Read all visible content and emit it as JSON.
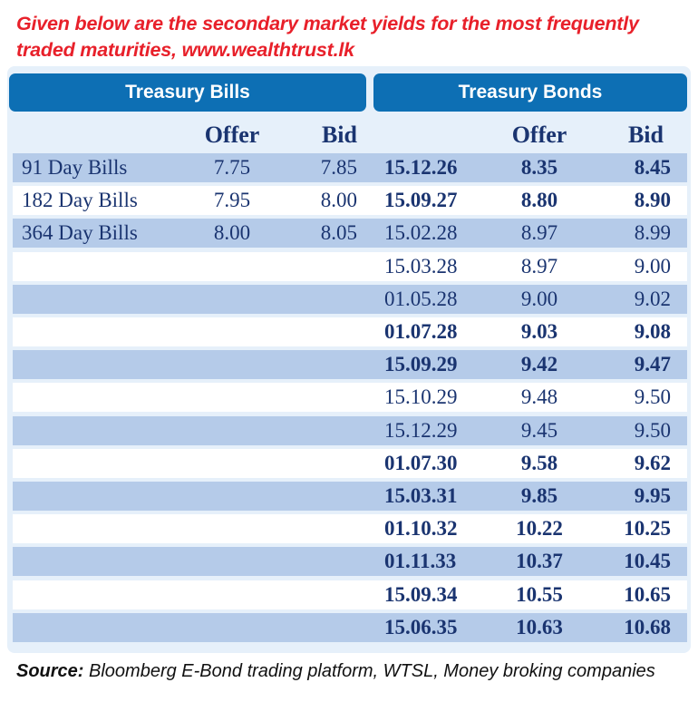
{
  "caption": "Given below are the secondary market yields for the most frequently traded maturities, www.wealthtrust.lk",
  "bills_header": "Treasury Bills",
  "bonds_header": "Treasury Bonds",
  "columns": {
    "offer": "Offer",
    "bid": "Bid"
  },
  "bills": [
    {
      "name": "91 Day Bills",
      "offer": "7.75",
      "bid": "7.85"
    },
    {
      "name": "182 Day Bills",
      "offer": "7.95",
      "bid": "8.00"
    },
    {
      "name": "364 Day Bills",
      "offer": "8.00",
      "bid": "8.05"
    }
  ],
  "bonds": [
    {
      "maturity": "15.12.26",
      "offer": "8.35",
      "bid": "8.45",
      "bold": true
    },
    {
      "maturity": "15.09.27",
      "offer": "8.80",
      "bid": "8.90",
      "bold": true
    },
    {
      "maturity": "15.02.28",
      "offer": "8.97",
      "bid": "8.99",
      "bold": false
    },
    {
      "maturity": "15.03.28",
      "offer": "8.97",
      "bid": "9.00",
      "bold": false
    },
    {
      "maturity": "01.05.28",
      "offer": "9.00",
      "bid": "9.02",
      "bold": false
    },
    {
      "maturity": "01.07.28",
      "offer": "9.03",
      "bid": "9.08",
      "bold": true
    },
    {
      "maturity": "15.09.29",
      "offer": "9.42",
      "bid": "9.47",
      "bold": true
    },
    {
      "maturity": "15.10.29",
      "offer": "9.48",
      "bid": "9.50",
      "bold": false
    },
    {
      "maturity": "15.12.29",
      "offer": "9.45",
      "bid": "9.50",
      "bold": false
    },
    {
      "maturity": "01.07.30",
      "offer": "9.58",
      "bid": "9.62",
      "bold": true
    },
    {
      "maturity": "15.03.31",
      "offer": "9.85",
      "bid": "9.95",
      "bold": true
    },
    {
      "maturity": "01.10.32",
      "offer": "10.22",
      "bid": "10.25",
      "bold": true
    },
    {
      "maturity": "01.11.33",
      "offer": "10.37",
      "bid": "10.45",
      "bold": true
    },
    {
      "maturity": "15.09.34",
      "offer": "10.55",
      "bid": "10.65",
      "bold": true
    },
    {
      "maturity": "15.06.35",
      "offer": "10.63",
      "bid": "10.68",
      "bold": true
    }
  ],
  "footer": {
    "label": "Source:",
    "text": " Bloomberg E-Bond trading platform, WTSL, Money broking companies"
  },
  "colors": {
    "caption": "#e8202a",
    "header_bg": "#0d6fb4",
    "band": "#b5cbe9",
    "text": "#1a3470"
  }
}
